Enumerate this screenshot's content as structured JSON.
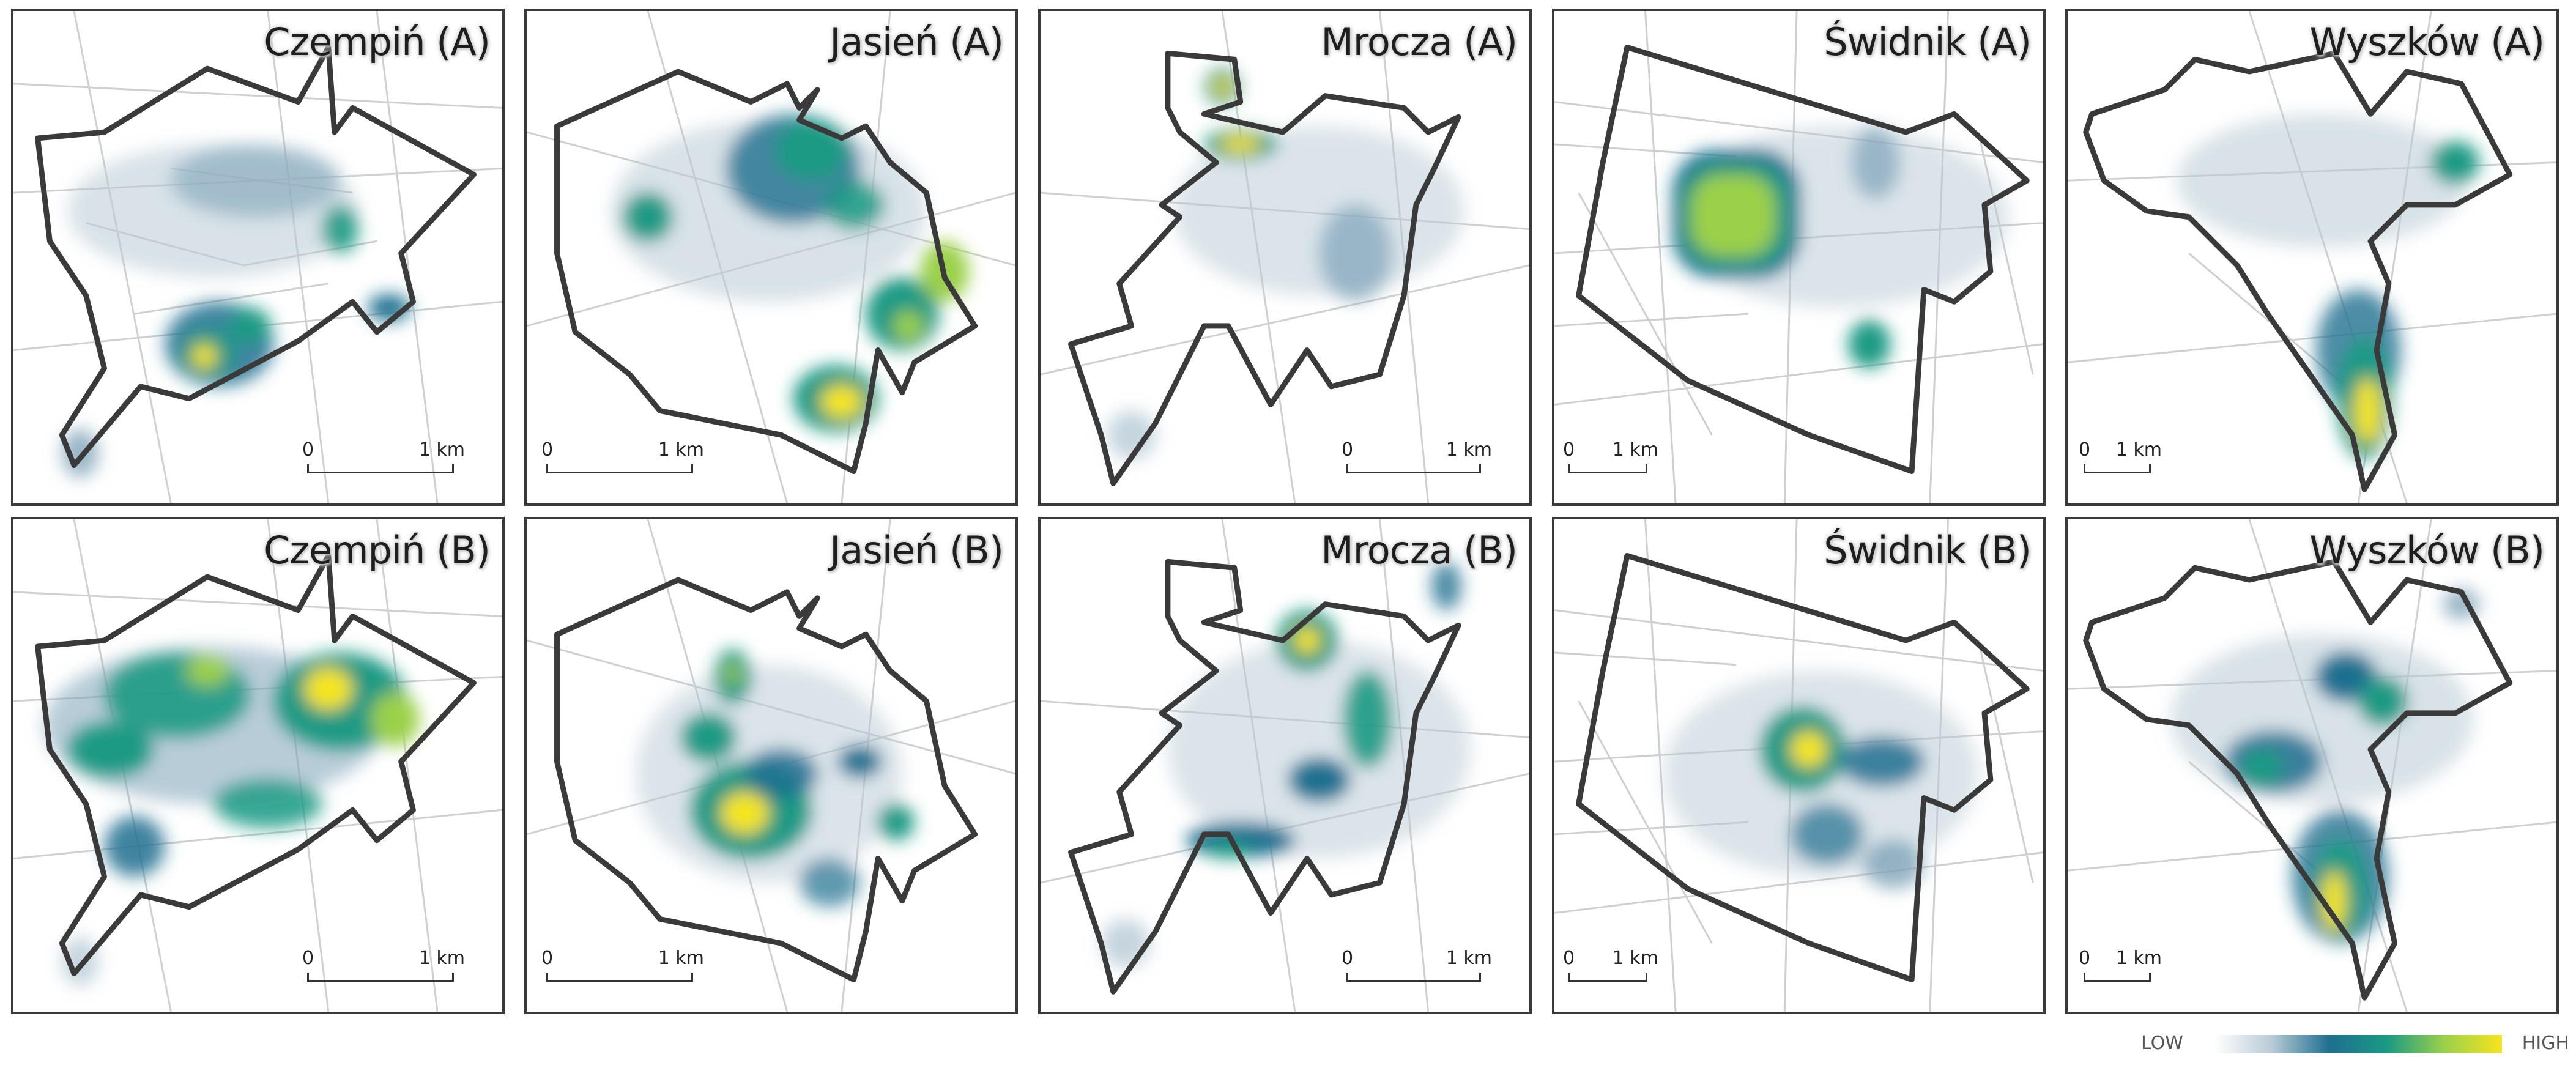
{
  "panels": [
    {
      "title": "Czempiń (A)",
      "town": "Czempiń",
      "variant": "A",
      "scale": {
        "zero": "0",
        "end": "1 km"
      }
    },
    {
      "title": "Jasień (A)",
      "town": "Jasień",
      "variant": "A",
      "scale": {
        "zero": "0",
        "end": "1 km"
      }
    },
    {
      "title": "Mrocza (A)",
      "town": "Mrocza",
      "variant": "A",
      "scale": {
        "zero": "0",
        "end": "1 km"
      }
    },
    {
      "title": "Świdnik (A)",
      "town": "Świdnik",
      "variant": "A",
      "scale": {
        "zero": "0",
        "end": "1 km"
      }
    },
    {
      "title": "Wyszków (A)",
      "town": "Wyszków",
      "variant": "A",
      "scale": {
        "zero": "0",
        "end": "1 km"
      }
    },
    {
      "title": "Czempiń (B)",
      "town": "Czempiń",
      "variant": "B",
      "scale": {
        "zero": "0",
        "end": "1 km"
      }
    },
    {
      "title": "Jasień (B)",
      "town": "Jasień",
      "variant": "B",
      "scale": {
        "zero": "0",
        "end": "1 km"
      }
    },
    {
      "title": "Mrocza (B)",
      "town": "Mrocza",
      "variant": "B",
      "scale": {
        "zero": "0",
        "end": "1 km"
      }
    },
    {
      "title": "Świdnik (B)",
      "town": "Świdnik",
      "variant": "B",
      "scale": {
        "zero": "0",
        "end": "1 km"
      }
    },
    {
      "title": "Wyszków (B)",
      "town": "Wyszków",
      "variant": "B",
      "scale": {
        "zero": "0",
        "end": "1 km"
      }
    }
  ],
  "legend": {
    "low": "LOW",
    "high": "HIGH",
    "ramp": [
      "#ffffff",
      "#b8cad6",
      "#1f6f8f",
      "#1b9a84",
      "#9bd04a",
      "#f5e51f"
    ]
  },
  "colors": {
    "boundary": "#3a3a3a",
    "streets": "#c8c8c8",
    "low": "#b8cad6",
    "mid": "#1f6f8f",
    "teal": "#1b9a84",
    "green": "#9bd04a",
    "high": "#f5e51f"
  }
}
